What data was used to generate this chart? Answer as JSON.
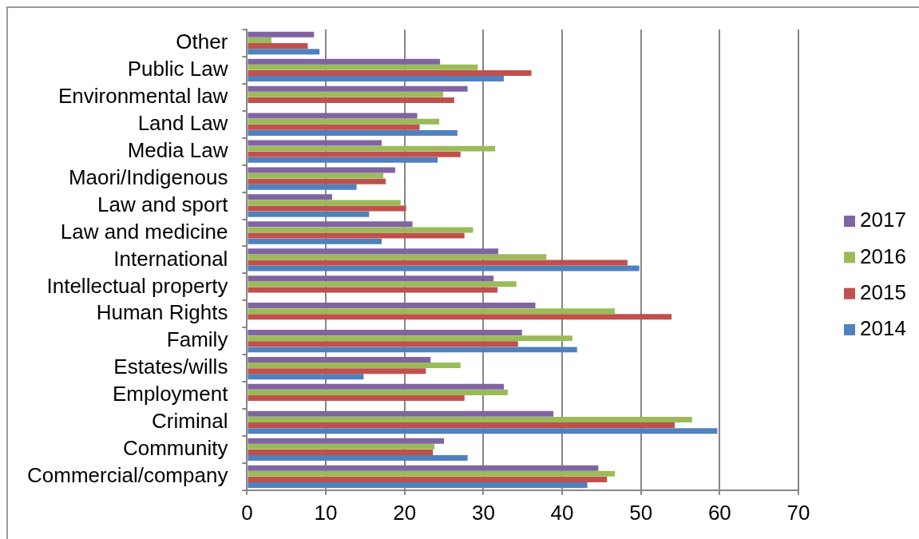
{
  "chart_data": {
    "type": "bar",
    "orientation": "horizontal",
    "categories": [
      "Other",
      "Public Law",
      "Environmental law",
      "Land Law",
      "Media Law",
      "Maori/Indigenous",
      "Law and sport",
      "Law and medicine",
      "International",
      "Intellectual property",
      "Human Rights",
      "Family",
      "Estates/wills",
      "Employment",
      "Criminal",
      "Community",
      "Commercial/company"
    ],
    "series": [
      {
        "name": "2017",
        "color": "#8064a2",
        "values": [
          8.5,
          24.5,
          28.0,
          21.6,
          17.1,
          18.8,
          10.8,
          21.0,
          31.9,
          31.3,
          36.6,
          34.9,
          23.3,
          32.6,
          38.9,
          25.0,
          44.6
        ]
      },
      {
        "name": "2016",
        "color": "#9bbb59",
        "values": [
          3.1,
          29.3,
          24.9,
          24.4,
          31.5,
          17.3,
          19.5,
          28.7,
          38.0,
          34.2,
          46.7,
          41.3,
          27.1,
          33.1,
          56.5,
          23.8,
          46.7
        ]
      },
      {
        "name": "2015",
        "color": "#c0504d",
        "values": [
          7.7,
          36.1,
          26.3,
          21.9,
          27.1,
          17.6,
          20.2,
          27.6,
          48.3,
          31.8,
          53.9,
          34.4,
          22.7,
          27.6,
          54.3,
          23.6,
          45.7
        ]
      },
      {
        "name": "2014",
        "color": "#4f81bd",
        "values": [
          9.2,
          32.6,
          null,
          26.7,
          24.2,
          13.9,
          15.5,
          17.1,
          49.8,
          null,
          null,
          41.9,
          14.8,
          null,
          59.7,
          28.0,
          43.2
        ]
      }
    ],
    "xlim": [
      0,
      70
    ],
    "xticks": [
      0,
      10,
      20,
      30,
      40,
      50,
      60,
      70
    ],
    "grid": "x",
    "legend": "right"
  }
}
